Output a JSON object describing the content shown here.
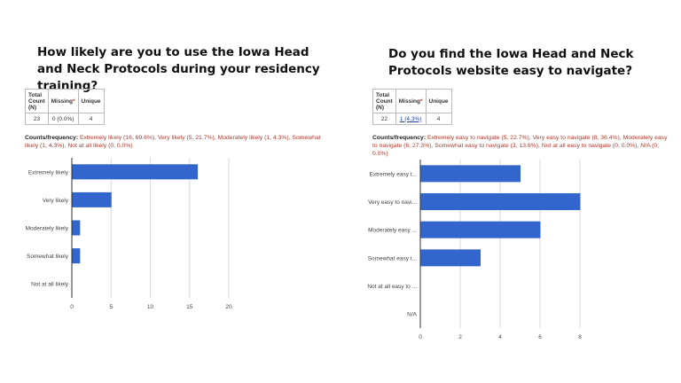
{
  "charts": [
    {
      "question": "How likely are you to use the Iowa Head and Neck Protocols during your residency training?",
      "stats": {
        "headers": [
          "Total Count (N)",
          "Missing",
          "Unique"
        ],
        "total": "23",
        "missing": "0 (0.0%)",
        "unique": "4"
      },
      "freq_label": "Counts/frequency:",
      "freq_items": [
        "Extremely likely (16, 69.6%),",
        "Very likely (5, 21.7%),",
        "Moderately likely (1, 4.3%),",
        "Somewhat likely (1, 4.3%),",
        "Not at all likely (0, 0.0%)"
      ]
    },
    {
      "question": "Do you find the Iowa Head and Neck Protocols website easy to navigate?",
      "stats": {
        "headers": [
          "Total Count (N)",
          "Missing",
          "Unique"
        ],
        "total": "22",
        "missing": "1 (4.3%)",
        "unique": "4"
      },
      "freq_label": "Counts/frequency:",
      "freq_items": [
        "Extremely easy to navigate (5, 22.7%),",
        "Very easy to navigate (8, 36.4%),",
        "Moderately easy to navigate (6, 27.3%),",
        "Somewhat easy to navigate (3, 13.6%),",
        "Not at all easy to navigate (0, 0.0%),",
        "N/A (0, 0.0%)"
      ]
    }
  ],
  "chart_data": [
    {
      "type": "bar",
      "orientation": "horizontal",
      "categories": [
        "Extremely likely",
        "Very likely",
        "Moderately likely",
        "Somewhat likely",
        "Not at all likely"
      ],
      "values": [
        16,
        5,
        1,
        1,
        0
      ],
      "xlim": [
        0,
        20
      ],
      "xticks": [
        "0",
        "5",
        "10",
        "15",
        "20"
      ],
      "bar_color": "#3366cc",
      "grid": true
    },
    {
      "type": "bar",
      "orientation": "horizontal",
      "categories": [
        "Extremely easy t...",
        "Very easy to navi...",
        "Moderately easy ...",
        "Somewhat easy t...",
        "Not at all easy to ...",
        "N/A"
      ],
      "values": [
        5,
        8,
        6,
        3,
        0,
        0
      ],
      "xlim": [
        0,
        8
      ],
      "xticks": [
        "0",
        "2",
        "4",
        "6",
        "8"
      ],
      "bar_color": "#3366cc",
      "grid": true
    }
  ]
}
